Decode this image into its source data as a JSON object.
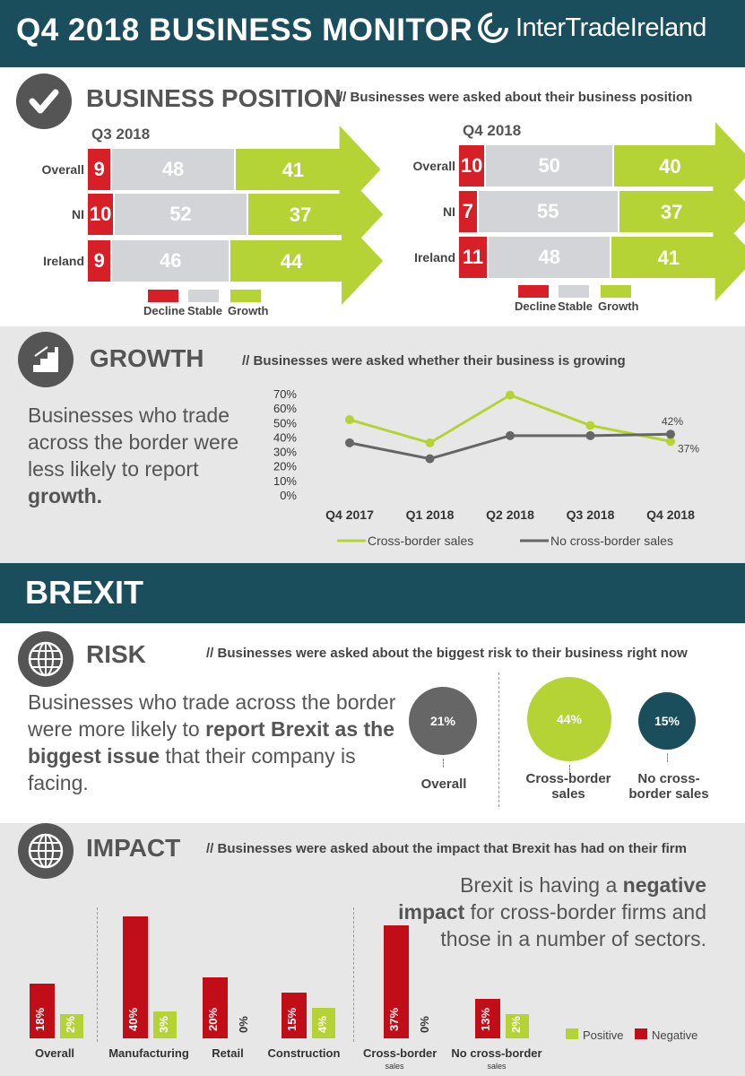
{
  "header": {
    "title": "Q4 2018 BUSINESS MONITOR",
    "brand": "InterTradeIreland",
    "brand_color": "#1b4e5c"
  },
  "business_position": {
    "title": "BUSINESS POSITION",
    "note": "// Businesses were asked about their business position",
    "icon": "checkmark-icon",
    "legend": [
      "Decline",
      "Stable",
      "Growth"
    ],
    "colors": {
      "decline": "#d71f27",
      "stable": "#d2d4d7",
      "growth": "#b5d334"
    }
  },
  "growth_section": {
    "title": "GROWTH",
    "note": "// Businesses were asked whether their business is growing",
    "icon": "stairs-icon",
    "text_before": "Businesses who trade across the border were less likely to report ",
    "text_bold": "growth."
  },
  "brexit": {
    "title": "BREXIT"
  },
  "risk": {
    "title": "RISK",
    "note": "// Businesses were asked about the biggest risk to their business right now",
    "icon": "globe-icon",
    "text_before": "Businesses who trade across the border were more likely to ",
    "text_bold": "report Brexit as the biggest issue",
    "text_after": " that their company is facing."
  },
  "impact": {
    "title": "IMPACT",
    "note": "// Businesses were asked about the impact that Brexit has had on their firm",
    "icon": "globe-icon",
    "text_before": "Brexit is having a ",
    "text_bold": "negative impact",
    "text_after": " for cross-border firms and those in a number of sectors.",
    "legend": [
      "Positive",
      "Negative"
    ]
  },
  "chart_data": [
    {
      "type": "bar",
      "title": "Q3 2018",
      "stacked": true,
      "categories": [
        "Overall",
        "NI",
        "Ireland"
      ],
      "series": [
        {
          "name": "Decline",
          "values": [
            9,
            10,
            9
          ]
        },
        {
          "name": "Stable",
          "values": [
            48,
            52,
            46
          ]
        },
        {
          "name": "Growth",
          "values": [
            41,
            37,
            44
          ]
        }
      ]
    },
    {
      "type": "bar",
      "title": "Q4 2018",
      "stacked": true,
      "categories": [
        "Overall",
        "NI",
        "Ireland"
      ],
      "series": [
        {
          "name": "Decline",
          "values": [
            10,
            7,
            11
          ]
        },
        {
          "name": "Stable",
          "values": [
            50,
            55,
            48
          ]
        },
        {
          "name": "Growth",
          "values": [
            40,
            37,
            41
          ]
        }
      ]
    },
    {
      "type": "line",
      "x": [
        "Q4 2017",
        "Q1 2018",
        "Q2 2018",
        "Q3 2018",
        "Q4 2018"
      ],
      "yticks": [
        "0%",
        "10%",
        "20%",
        "30%",
        "40%",
        "50%",
        "60%",
        "70%"
      ],
      "ylim": [
        0,
        70
      ],
      "series": [
        {
          "name": "Cross-border sales",
          "values": [
            52,
            36,
            69,
            48,
            37
          ],
          "color": "#b5d334"
        },
        {
          "name": "No cross-border sales",
          "values": [
            36,
            25,
            41,
            41,
            42
          ],
          "color": "#666666"
        }
      ],
      "annotations": [
        "42%",
        "37%"
      ]
    },
    {
      "type": "bubble",
      "categories": [
        "Overall",
        "Cross-border sales",
        "No cross-border sales"
      ],
      "values": [
        21,
        44,
        15
      ],
      "labels": [
        "21%",
        "44%",
        "15%"
      ],
      "colors": [
        "#666666",
        "#b5d334",
        "#1b4e5c"
      ]
    },
    {
      "type": "bar",
      "categories": [
        "Overall",
        "Manufacturing",
        "Retail",
        "Construction",
        "Cross-border sales",
        "No cross-border sales"
      ],
      "series": [
        {
          "name": "Negative",
          "values": [
            18,
            40,
            20,
            15,
            37,
            13
          ],
          "labels": [
            "18%",
            "40%",
            "20%",
            "15%",
            "37%",
            "13%"
          ],
          "color": "#c00d17"
        },
        {
          "name": "Positive",
          "values": [
            2,
            3,
            0,
            4,
            0,
            2
          ],
          "labels": [
            "2%",
            "3%",
            "0%",
            "4%",
            "0%",
            "2%"
          ],
          "color": "#b5d334"
        }
      ]
    }
  ]
}
